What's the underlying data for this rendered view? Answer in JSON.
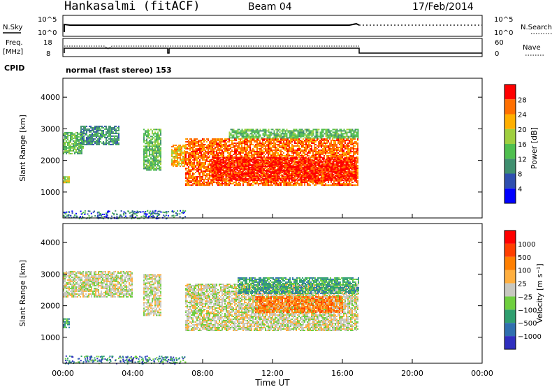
{
  "header": {
    "station": "Hankasalmi (fitACF)",
    "beam": "Beam 04",
    "date": "17/Feb/2014"
  },
  "status_panels": {
    "nsky_label": "N.Sky",
    "nsky_ticks": [
      "10^5",
      "10^0"
    ],
    "nsearch_label": "N.Search",
    "nsearch_ticks": [
      "10^5",
      "10^0"
    ],
    "freq_label": "Freq.",
    "freq_unit": "[MHz]",
    "freq_ticks": [
      "18",
      "8"
    ],
    "nave_label": "Nave",
    "nave_ticks": [
      "60",
      "0"
    ],
    "cpid_label": "CPID",
    "cpid_text": "normal (fast stereo) 153"
  },
  "x_axis": {
    "label": "Time UT",
    "ticks": [
      "00:00",
      "04:00",
      "08:00",
      "12:00",
      "16:00",
      "20:00",
      "00:00"
    ],
    "range_hours": [
      0,
      24
    ]
  },
  "power_panel": {
    "ylabel": "Slant Range [km]",
    "yticks": [
      "4000",
      "3000",
      "2000",
      "1000"
    ],
    "colorbar_label": "Power [dB]",
    "colorbar_ticks": [
      "28",
      "24",
      "20",
      "16",
      "12",
      "8",
      "4"
    ],
    "colors": [
      "#0000ff",
      "#2f4faf",
      "#3f8f6f",
      "#4fbf4f",
      "#9fcf3f",
      "#ffaf00",
      "#ff6f00",
      "#ff0000"
    ]
  },
  "velocity_panel": {
    "ylabel": "Slant Range [km]",
    "yticks": [
      "4000",
      "3000",
      "2000",
      "1000"
    ],
    "colorbar_label": "Velocity [m s⁻¹]",
    "colorbar_ticks": [
      "1000",
      "500",
      "100",
      "25",
      "−25",
      "−100",
      "−500",
      "−1000"
    ],
    "colors": [
      "#2f2fbf",
      "#2f6faf",
      "#2f9f6f",
      "#6fcf3f",
      "#c8c8c0",
      "#ffaf3f",
      "#ff7f00",
      "#ff3f00",
      "#ff0000"
    ]
  },
  "chart_data": {
    "type": "heatmap",
    "x_unit": "hours UT",
    "xlim": [
      0,
      24
    ],
    "ylim_km": [
      180,
      4600
    ],
    "power_regions": [
      {
        "x": [
          0.0,
          1.2
        ],
        "y": [
          2200,
          2900
        ],
        "level": 3
      },
      {
        "x": [
          0.0,
          0.4
        ],
        "y": [
          1300,
          1500
        ],
        "level": 4
      },
      {
        "x": [
          1.0,
          3.2
        ],
        "y": [
          2500,
          3100
        ],
        "level": 2
      },
      {
        "x": [
          4.6,
          5.6
        ],
        "y": [
          1700,
          3000
        ],
        "level": 3
      },
      {
        "x": [
          6.2,
          7.0
        ],
        "y": [
          1800,
          2500
        ],
        "level": 5
      },
      {
        "x": [
          7.0,
          16.9
        ],
        "y": [
          1200,
          2700
        ],
        "level": 6
      },
      {
        "x": [
          8.5,
          16.8
        ],
        "y": [
          1350,
          2100
        ],
        "level": 7
      },
      {
        "x": [
          9.5,
          16.9
        ],
        "y": [
          2700,
          3000
        ],
        "level": 3
      }
    ],
    "velocity_regions": [
      {
        "x": [
          0.0,
          4.0
        ],
        "y": [
          2300,
          3100
        ],
        "level": 4
      },
      {
        "x": [
          4.6,
          5.6
        ],
        "y": [
          1700,
          3000
        ],
        "level": 4
      },
      {
        "x": [
          7.0,
          16.9
        ],
        "y": [
          1200,
          2700
        ],
        "level": 4
      },
      {
        "x": [
          10.0,
          16.9
        ],
        "y": [
          2400,
          2900
        ],
        "level": 2
      },
      {
        "x": [
          11.0,
          16.0
        ],
        "y": [
          1800,
          2300
        ],
        "level": 6
      },
      {
        "x": [
          0.0,
          0.4
        ],
        "y": [
          1300,
          1600
        ],
        "level": 2
      }
    ]
  }
}
